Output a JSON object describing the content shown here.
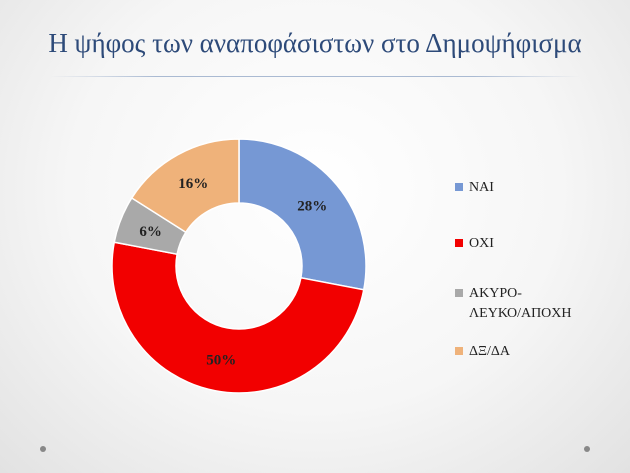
{
  "slide": {
    "title": "Η ψήφος των αναποφάσιστων στο Δημοψήφισμα"
  },
  "chart_data": {
    "type": "pie",
    "donut": true,
    "categories": [
      "ΝΑΙ",
      "ΟΧΙ",
      "ΑΚΥΡΟ-\nΛΕΥΚΟ/ΑΠΟΧΗ",
      "ΔΞ/ΔΑ"
    ],
    "values": [
      28,
      50,
      6,
      16
    ],
    "data_labels": [
      "28%",
      "50%",
      "6%",
      "16%"
    ],
    "colors": [
      "#7698d4",
      "#f20000",
      "#a9a9a9",
      "#efb27a"
    ],
    "legend_position": "right"
  }
}
